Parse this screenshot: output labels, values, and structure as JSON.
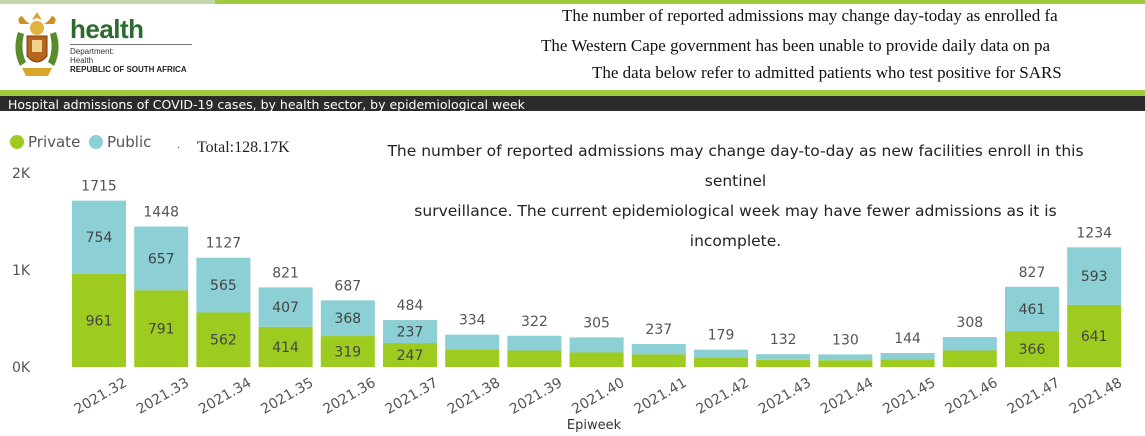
{
  "header": {
    "logo": {
      "wordmark": "health",
      "line1": "Department:",
      "line2": "Health",
      "line3": "REPUBLIC OF SOUTH AFRICA"
    },
    "notes": [
      "The number of reported admissions may change day-today as enrolled fa",
      "The Western Cape government has been unable to provide daily data on pa",
      "The data below refer to admitted patients who test positive for SARS"
    ]
  },
  "panel": {
    "title": "Hospital admissions of COVID-19 cases, by health sector, by epidemiological week",
    "total_label": "Total:128.17K",
    "annotation_line1": "The number of reported admissions may change day-to-day as new facilities enroll in this sentinel",
    "annotation_line2": "surveillance. The current epidemiological week may have fewer admissions as it is incomplete."
  },
  "colors": {
    "private": "#9ecb1f",
    "public": "#8ccfd4",
    "accent_green": "#9ecb3c",
    "title_bar": "#2b2b2b"
  },
  "chart_data": {
    "type": "bar",
    "stacked": true,
    "xlabel": "Epiweek",
    "ylabel": "",
    "ylim": [
      0,
      2000
    ],
    "yticks": [
      {
        "value": 0,
        "label": "0K"
      },
      {
        "value": 1000,
        "label": "1K"
      },
      {
        "value": 2000,
        "label": "2K"
      }
    ],
    "legend_position": "top-left",
    "categories": [
      "2021.32",
      "2021.33",
      "2021.34",
      "2021.35",
      "2021.36",
      "2021.37",
      "2021.38",
      "2021.39",
      "2021.40",
      "2021.41",
      "2021.42",
      "2021.43",
      "2021.44",
      "2021.45",
      "2021.46",
      "2021.47",
      "2021.48"
    ],
    "series": [
      {
        "name": "Private",
        "values": [
          961,
          791,
          562,
          414,
          319,
          247,
          180,
          170,
          150,
          130,
          100,
          75,
          70,
          80,
          170,
          366,
          641
        ]
      },
      {
        "name": "Public",
        "values": [
          754,
          657,
          565,
          407,
          368,
          237,
          154,
          152,
          155,
          107,
          79,
          57,
          60,
          64,
          138,
          461,
          593
        ]
      }
    ],
    "private_labels": [
      "961",
      "791",
      "562",
      "414",
      "319",
      "247",
      "",
      "",
      "",
      "",
      "",
      "",
      "",
      "",
      "",
      "366",
      "641"
    ],
    "public_labels": [
      "754",
      "657",
      "565",
      "407",
      "368",
      "237",
      "",
      "",
      "",
      "",
      "",
      "",
      "",
      "",
      "",
      "461",
      "593"
    ],
    "total_labels": [
      "1715",
      "1448",
      "1127",
      "821",
      "687",
      "484",
      "334",
      "322",
      "305",
      "237",
      "179",
      "132",
      "130",
      "144",
      "308",
      "827",
      "1234"
    ]
  }
}
